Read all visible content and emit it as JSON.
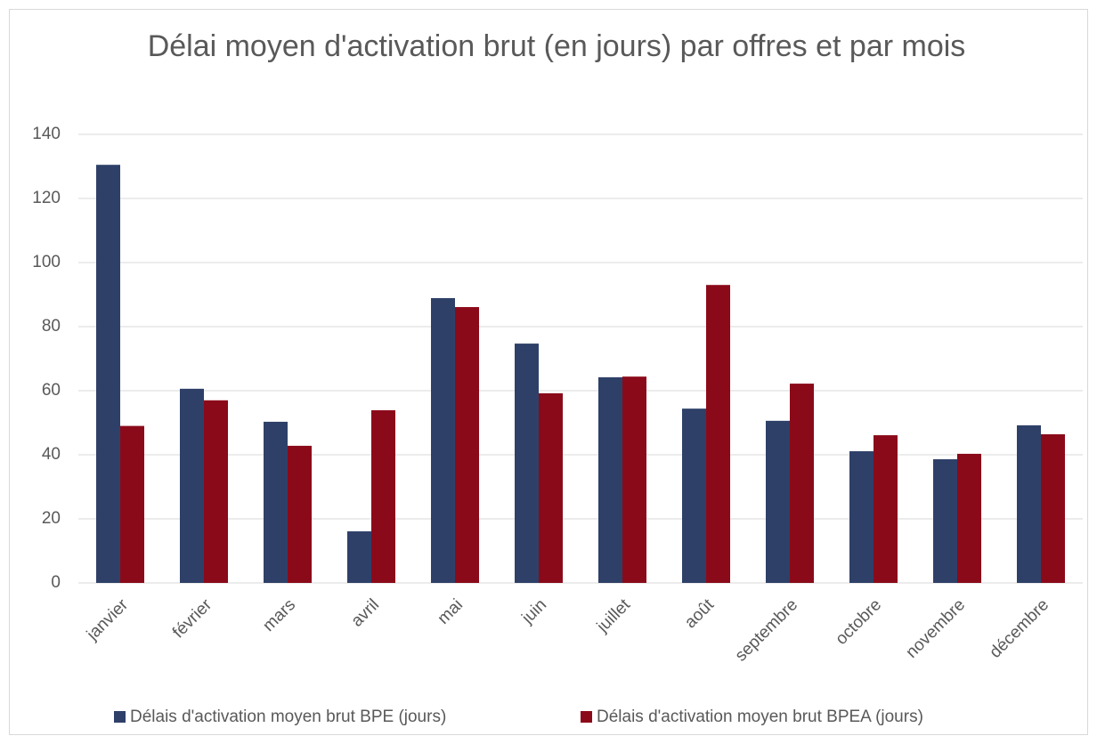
{
  "chart_data": {
    "type": "bar",
    "title": "Délai moyen d'activation brut (en jours) par offres et par mois",
    "categories": [
      "janvier",
      "février",
      "mars",
      "avril",
      "mai",
      "juin",
      "juillet",
      "août",
      "septembre",
      "octobre",
      "novembre",
      "décembre"
    ],
    "series": [
      {
        "name": "Délais d'activation moyen brut BPE (jours)",
        "color": "#2e4068",
        "values": [
          130.5,
          60.6,
          50.3,
          16.1,
          88.9,
          74.7,
          64.2,
          54.4,
          50.6,
          41.1,
          38.6,
          49.2
        ]
      },
      {
        "name": "Délais d'activation moyen brut BPEA (jours)",
        "color": "#8b0a1a",
        "values": [
          49,
          57,
          42.8,
          53.9,
          86.1,
          59.2,
          64.4,
          93,
          62.2,
          46.1,
          40.3,
          46.4
        ]
      }
    ],
    "ylim": [
      0,
      140
    ],
    "yticks": [
      0,
      20,
      40,
      60,
      80,
      100,
      120,
      140
    ],
    "grid": true,
    "legend": "bottom"
  }
}
